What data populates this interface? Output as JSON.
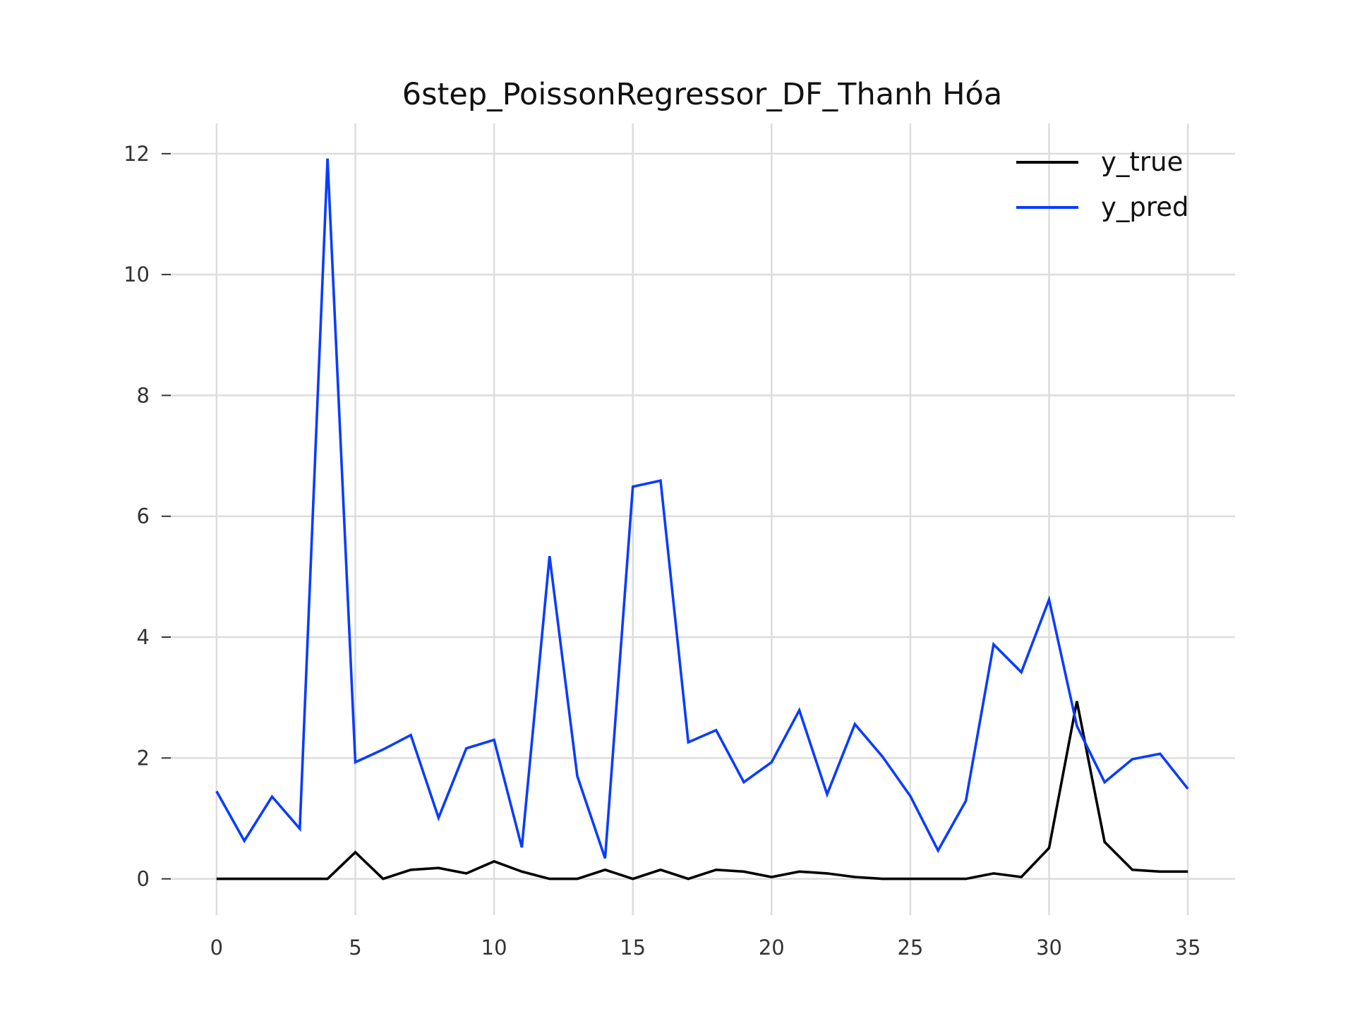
{
  "chart_data": {
    "type": "line",
    "title": "6step_PoissonRegressor_DF_Thanh Hóa",
    "xlabel": "",
    "ylabel": "",
    "xlim": [
      -1.7,
      36.7
    ],
    "ylim": [
      -0.6,
      12.5
    ],
    "xticks": [
      0,
      5,
      10,
      15,
      20,
      25,
      30,
      35
    ],
    "yticks": [
      0,
      2,
      4,
      6,
      8,
      10,
      12
    ],
    "grid": true,
    "legend_position": "top-right",
    "x": [
      0,
      1,
      2,
      3,
      4,
      5,
      6,
      7,
      8,
      9,
      10,
      11,
      12,
      13,
      14,
      15,
      16,
      17,
      18,
      19,
      20,
      21,
      22,
      23,
      24,
      25,
      26,
      27,
      28,
      29,
      30,
      31,
      32,
      33,
      34,
      35
    ],
    "series": [
      {
        "name": "y_true",
        "color": "#000000",
        "values": [
          0,
          0,
          0,
          0,
          0,
          0.44,
          0,
          0.15,
          0.18,
          0.09,
          0.29,
          0.12,
          0,
          0,
          0.15,
          0,
          0.15,
          0,
          0.15,
          0.12,
          0.03,
          0.12,
          0.09,
          0.03,
          0,
          0,
          0,
          0,
          0.09,
          0.03,
          0.51,
          2.94,
          0.61,
          0.15,
          0.12,
          0.12
        ]
      },
      {
        "name": "y_pred",
        "color": "#0a3cff",
        "values": [
          1.45,
          0.63,
          1.36,
          0.83,
          11.92,
          1.93,
          2.14,
          2.38,
          1.01,
          2.16,
          2.3,
          0.52,
          5.34,
          1.7,
          0.34,
          6.49,
          6.59,
          2.26,
          2.46,
          1.6,
          1.93,
          2.79,
          1.4,
          2.56,
          2.02,
          1.37,
          0.47,
          1.29,
          3.88,
          3.42,
          4.62,
          2.53,
          1.6,
          1.98,
          2.07,
          1.49
        ]
      }
    ]
  }
}
